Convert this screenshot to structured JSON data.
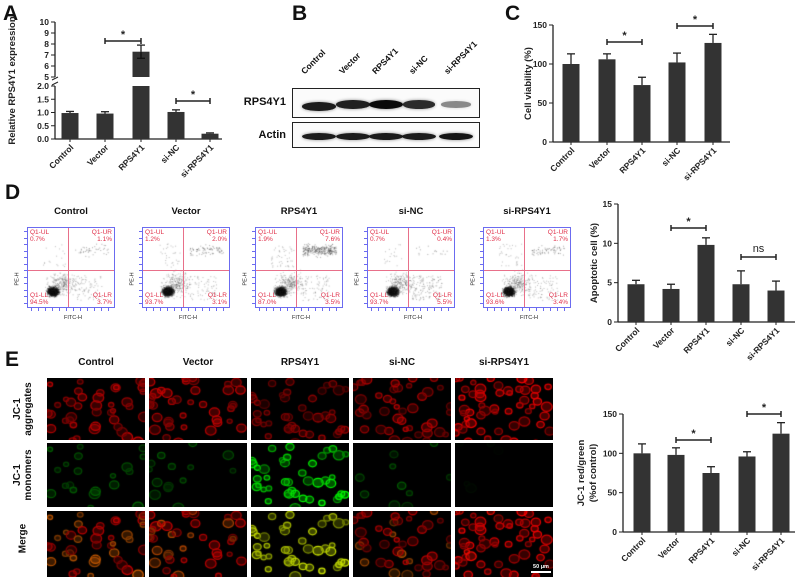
{
  "panel_labels": [
    "A",
    "B",
    "C",
    "D",
    "E"
  ],
  "chart_data": [
    {
      "id": "A",
      "type": "bar",
      "categories": [
        "Control",
        "Vector",
        "RPS4Y1",
        "si-NC",
        "si-RPS4Y1"
      ],
      "values": [
        0.98,
        0.96,
        7.3,
        1.02,
        0.2
      ],
      "errors": [
        0.06,
        0.07,
        0.6,
        0.08,
        0.03
      ],
      "ylabel": "Relative RPS4Y1 expression",
      "ylim": [
        0,
        10
      ],
      "axis_break": [
        2.0,
        5
      ],
      "yticks": [
        "0.0",
        "0.5",
        "1.0",
        "1.5",
        "2.0",
        "5",
        "6",
        "7",
        "8",
        "9",
        "10"
      ],
      "ytick_values": [
        0,
        0.5,
        1,
        1.5,
        2,
        5,
        6,
        7,
        8,
        9,
        10
      ],
      "significance": [
        {
          "groups": [
            "Vector",
            "RPS4Y1"
          ],
          "label": "*"
        },
        {
          "groups": [
            "si-NC",
            "si-RPS4Y1"
          ],
          "label": "*"
        }
      ],
      "bar_color": "#333333"
    },
    {
      "id": "C",
      "type": "bar",
      "categories": [
        "Control",
        "Vector",
        "RPS4Y1",
        "si-NC",
        "si-RPS4Y1"
      ],
      "values": [
        100,
        106,
        73,
        102,
        127
      ],
      "errors": [
        13,
        7,
        10,
        12,
        11
      ],
      "ylabel": "Cell viability (%)",
      "ylim": [
        0,
        150
      ],
      "yticks": [
        "0",
        "50",
        "100",
        "150"
      ],
      "ytick_values": [
        0,
        50,
        100,
        150
      ],
      "significance": [
        {
          "groups": [
            "Vector",
            "RPS4Y1"
          ],
          "label": "*"
        },
        {
          "groups": [
            "si-NC",
            "si-RPS4Y1"
          ],
          "label": "*"
        }
      ],
      "bar_color": "#333333"
    },
    {
      "id": "D",
      "type": "bar",
      "categories": [
        "Control",
        "Vector",
        "RPS4Y1",
        "si-NC",
        "si-RPS4Y1"
      ],
      "values": [
        4.8,
        4.2,
        9.8,
        4.8,
        4.0
      ],
      "errors": [
        0.5,
        0.6,
        0.9,
        1.7,
        1.2
      ],
      "ylabel": "Apoptotic cell (%)",
      "ylim": [
        0,
        15
      ],
      "yticks": [
        "0",
        "5",
        "10",
        "15"
      ],
      "ytick_values": [
        0,
        5,
        10,
        15
      ],
      "significance": [
        {
          "groups": [
            "Vector",
            "RPS4Y1"
          ],
          "label": "*"
        },
        {
          "groups": [
            "si-NC",
            "si-RPS4Y1"
          ],
          "label": "ns"
        }
      ],
      "bar_color": "#333333"
    },
    {
      "id": "E",
      "type": "bar",
      "categories": [
        "Control",
        "Vector",
        "RPS4Y1",
        "si-NC",
        "si-RPS4Y1"
      ],
      "values": [
        100,
        98,
        75,
        96,
        125
      ],
      "errors": [
        12,
        9,
        8,
        6,
        14
      ],
      "ylabel": [
        "JC-1 red/green",
        "(%of control)"
      ],
      "ylim": [
        0,
        150
      ],
      "yticks": [
        "0",
        "50",
        "100",
        "150"
      ],
      "ytick_values": [
        0,
        50,
        100,
        150
      ],
      "significance": [
        {
          "groups": [
            "Vector",
            "RPS4Y1"
          ],
          "label": "*"
        },
        {
          "groups": [
            "si-NC",
            "si-RPS4Y1"
          ],
          "label": "*"
        }
      ],
      "bar_color": "#333333"
    }
  ],
  "western_blot": {
    "lanes": [
      "Control",
      "Vector",
      "RPS4Y1",
      "si-NC",
      "si-RPS4Y1"
    ],
    "rows": [
      {
        "label": "RPS4Y1",
        "band_intensity": [
          0.9,
          0.88,
          1.0,
          0.82,
          0.3
        ]
      },
      {
        "label": "Actin",
        "band_intensity": [
          0.9,
          0.9,
          0.9,
          0.9,
          0.95
        ]
      }
    ]
  },
  "flow_cytometry": {
    "x_axis_label": "FITC-H",
    "y_axis_label": "PE-H",
    "plots": [
      {
        "title": "Control",
        "UL": [
          "Q1-UL",
          "0.7%"
        ],
        "UR": [
          "Q1-UR",
          "1.1%"
        ],
        "LL": [
          "Q1-LL",
          "94.5%"
        ],
        "LR": [
          "Q1-LR",
          "3.7%"
        ]
      },
      {
        "title": "Vector",
        "UL": [
          "Q1-UL",
          "1.2%"
        ],
        "UR": [
          "Q1-UR",
          "2.0%"
        ],
        "LL": [
          "Q1-LL",
          "93.7%"
        ],
        "LR": [
          "Q1-LR",
          "3.1%"
        ]
      },
      {
        "title": "RPS4Y1",
        "UL": [
          "Q1-UL",
          "1.9%"
        ],
        "UR": [
          "Q1-UR",
          "7.6%"
        ],
        "LL": [
          "Q1-LL",
          "87.0%"
        ],
        "LR": [
          "Q1-LR",
          "3.5%"
        ]
      },
      {
        "title": "si-NC",
        "UL": [
          "Q1-UL",
          "0.7%"
        ],
        "UR": [
          "Q1-UR",
          "0.4%"
        ],
        "LL": [
          "Q1-LL",
          "93.7%"
        ],
        "LR": [
          "Q1-LR",
          "5.5%"
        ]
      },
      {
        "title": "si-RPS4Y1",
        "UL": [
          "Q1-UL",
          "1.3%"
        ],
        "UR": [
          "Q1-UR",
          "1.7%"
        ],
        "LL": [
          "Q1-LL",
          "93.6%"
        ],
        "LR": [
          "Q1-LR",
          "3.4%"
        ]
      }
    ],
    "gate_color": "#e8708a",
    "frame_color": "#6b6bf0"
  },
  "jc1_imaging": {
    "columns": [
      "Control",
      "Vector",
      "RPS4Y1",
      "si-NC",
      "si-RPS4Y1"
    ],
    "rows": [
      {
        "line1": "JC-1",
        "line2": "aggregates"
      },
      {
        "line1": "JC-1",
        "line2": "monomers"
      },
      {
        "line1": "Merge",
        "line2": ""
      }
    ],
    "scale_bar": "50 μm",
    "red_intensity": [
      0.8,
      0.8,
      0.6,
      0.7,
      1.0
    ],
    "green_intensity": [
      0.4,
      0.35,
      1.0,
      0.35,
      0.05
    ]
  }
}
